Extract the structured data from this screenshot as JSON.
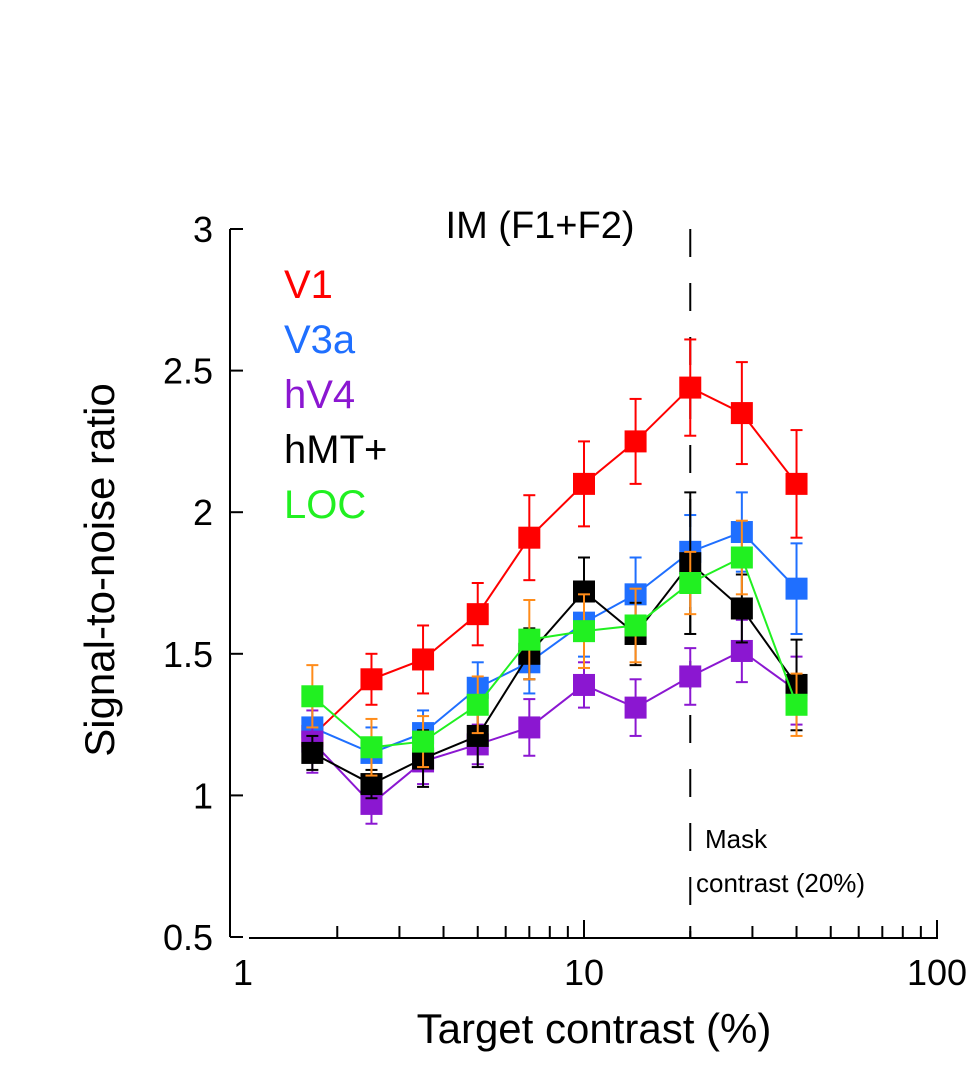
{
  "chart_data": {
    "type": "line",
    "title": "IM (F1+F2)",
    "xlabel": "Target contrast (%)",
    "ylabel": "Signal-to-noise ratio",
    "xscale": "log",
    "xlim": [
      1,
      100
    ],
    "ylim": [
      0.5,
      3
    ],
    "xticks": [
      1,
      10,
      100
    ],
    "xtick_labels": [
      "1",
      "10",
      "100"
    ],
    "yticks": [
      0.5,
      1,
      1.5,
      2,
      2.5,
      3
    ],
    "ytick_labels": [
      "0.5",
      "1",
      "1.5",
      "2",
      "2.5",
      "3"
    ],
    "grid": false,
    "legend_position": "top-left",
    "x": [
      1.7,
      2.5,
      3.5,
      5,
      7,
      10,
      14,
      20,
      28,
      40
    ],
    "series": [
      {
        "name": "V1",
        "color": "#ff0000",
        "values": [
          1.21,
          1.41,
          1.48,
          1.64,
          1.91,
          2.1,
          2.25,
          2.44,
          2.35,
          2.1
        ],
        "errors": [
          0.06,
          0.09,
          0.12,
          0.11,
          0.15,
          0.15,
          0.15,
          0.17,
          0.18,
          0.19
        ]
      },
      {
        "name": "V3a",
        "color": "#1f6fff",
        "values": [
          1.24,
          1.15,
          1.22,
          1.38,
          1.47,
          1.61,
          1.71,
          1.86,
          1.93,
          1.73
        ],
        "errors": [
          0.08,
          0.09,
          0.08,
          0.09,
          0.11,
          0.12,
          0.13,
          0.13,
          0.14,
          0.16
        ]
      },
      {
        "name": "hV4",
        "color": "#8b17d1",
        "values": [
          1.19,
          0.97,
          1.12,
          1.18,
          1.24,
          1.39,
          1.31,
          1.42,
          1.51,
          1.37
        ],
        "errors": [
          0.11,
          0.07,
          0.08,
          0.07,
          0.1,
          0.08,
          0.1,
          0.1,
          0.11,
          0.12
        ]
      },
      {
        "name": "hMT+",
        "color": "#000000",
        "values": [
          1.15,
          1.04,
          1.13,
          1.21,
          1.5,
          1.72,
          1.57,
          1.82,
          1.66,
          1.39
        ],
        "errors": [
          0.06,
          0.05,
          0.1,
          0.11,
          0.09,
          0.12,
          0.11,
          0.25,
          0.12,
          0.16
        ]
      },
      {
        "name": "LOC",
        "color": "#21f021",
        "values": [
          1.35,
          1.17,
          1.19,
          1.32,
          1.55,
          1.58,
          1.6,
          1.75,
          1.84,
          1.32
        ],
        "errors": [
          0.11,
          0.1,
          0.09,
          0.1,
          0.14,
          0.13,
          0.13,
          0.11,
          0.13,
          0.11
        ]
      }
    ],
    "error_bar_color_loc": "#ff8c1a",
    "annotations": [
      {
        "type": "vline",
        "x": 20,
        "style": "dashed",
        "label_line1": "Mask",
        "label_line2": "contrast (20%)"
      }
    ]
  }
}
